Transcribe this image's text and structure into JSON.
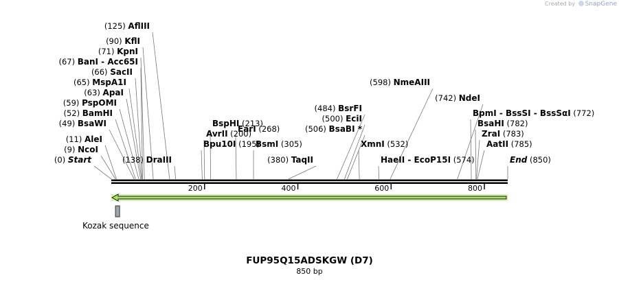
{
  "credit": {
    "prefix": "Created by",
    "brand": "SnapGene"
  },
  "sequence": {
    "name": "FUP95Q15ADSKGW (D7)",
    "length_label": "850 bp",
    "length": 850
  },
  "colors": {
    "backbone": "#000000",
    "tick": "#000000",
    "arrow_fill": "#aadd66",
    "arrow_stroke": "#1a1a1a",
    "arrow_glow": "#d9f2b3",
    "kozak_fill": "#a0a6ad",
    "leader": "#777777"
  },
  "ruler": {
    "ticks": [
      200,
      400,
      600,
      800
    ]
  },
  "features": [
    {
      "name": "Kozak sequence",
      "start": 9,
      "end": 15,
      "type": "box"
    },
    {
      "name": "",
      "start": 0,
      "end": 850,
      "type": "arrow",
      "direction": "reverse"
    }
  ],
  "sites": [
    {
      "pos": 125,
      "pos_label": "(125)",
      "name": "AflIII"
    },
    {
      "pos": 90,
      "pos_label": "(90)",
      "name": "KflI"
    },
    {
      "pos": 71,
      "pos_label": "(71)",
      "name": "KpnI"
    },
    {
      "pos": 67,
      "pos_label": "(67)",
      "name": "BanI  -  Acc65I"
    },
    {
      "pos": 66,
      "pos_label": "(66)",
      "name": "SacII"
    },
    {
      "pos": 65,
      "pos_label": "(65)",
      "name": "MspA1I"
    },
    {
      "pos": 63,
      "pos_label": "(63)",
      "name": "ApaI"
    },
    {
      "pos": 59,
      "pos_label": "(59)",
      "name": "PspOMI"
    },
    {
      "pos": 52,
      "pos_label": "(52)",
      "name": "BamHI"
    },
    {
      "pos": 49,
      "pos_label": "(49)",
      "name": "BsaWI"
    },
    {
      "pos": 11,
      "pos_label": "(11)",
      "name": "AleI"
    },
    {
      "pos": 9,
      "pos_label": "(9)",
      "name": "NcoI"
    },
    {
      "pos": 0,
      "pos_label": "(0)",
      "name": "Start",
      "italic": true
    },
    {
      "pos": 213,
      "pos_label": "(213)",
      "name": "BspHI"
    },
    {
      "pos": 200,
      "pos_label": "(200)",
      "name": "AvrII"
    },
    {
      "pos": 195,
      "pos_label": "(195)",
      "name": "Bpu10I"
    },
    {
      "pos": 138,
      "pos_label": "(138)",
      "name": "DraIII"
    },
    {
      "pos": 268,
      "pos_label": "(268)",
      "name": "EarI"
    },
    {
      "pos": 305,
      "pos_label": "(305)",
      "name": "BsmI"
    },
    {
      "pos": 380,
      "pos_label": "(380)",
      "name": "TaqII"
    },
    {
      "pos": 484,
      "pos_label": "(484)",
      "name": "BsrFI"
    },
    {
      "pos": 500,
      "pos_label": "(500)",
      "name": "EciI"
    },
    {
      "pos": 506,
      "pos_label": "(506)",
      "name": "BsaBI *"
    },
    {
      "pos": 532,
      "pos_label": "(532)",
      "name": "XmnI"
    },
    {
      "pos": 598,
      "pos_label": "(598)",
      "name": "NmeAIII"
    },
    {
      "pos": 574,
      "pos_label": "(574)",
      "name": "HaeII  -  EcoP15I"
    },
    {
      "pos": 742,
      "pos_label": "(742)",
      "name": "NdeI"
    },
    {
      "pos": 772,
      "pos_label": "(772)",
      "name": "BpmI  -  BssSI  -  BssSαI"
    },
    {
      "pos": 782,
      "pos_label": "(782)",
      "name": "BsaHI"
    },
    {
      "pos": 783,
      "pos_label": "(783)",
      "name": "ZraI"
    },
    {
      "pos": 785,
      "pos_label": "(785)",
      "name": "AatII"
    },
    {
      "pos": 850,
      "pos_label": "(850)",
      "name": "End",
      "italic": true
    }
  ]
}
